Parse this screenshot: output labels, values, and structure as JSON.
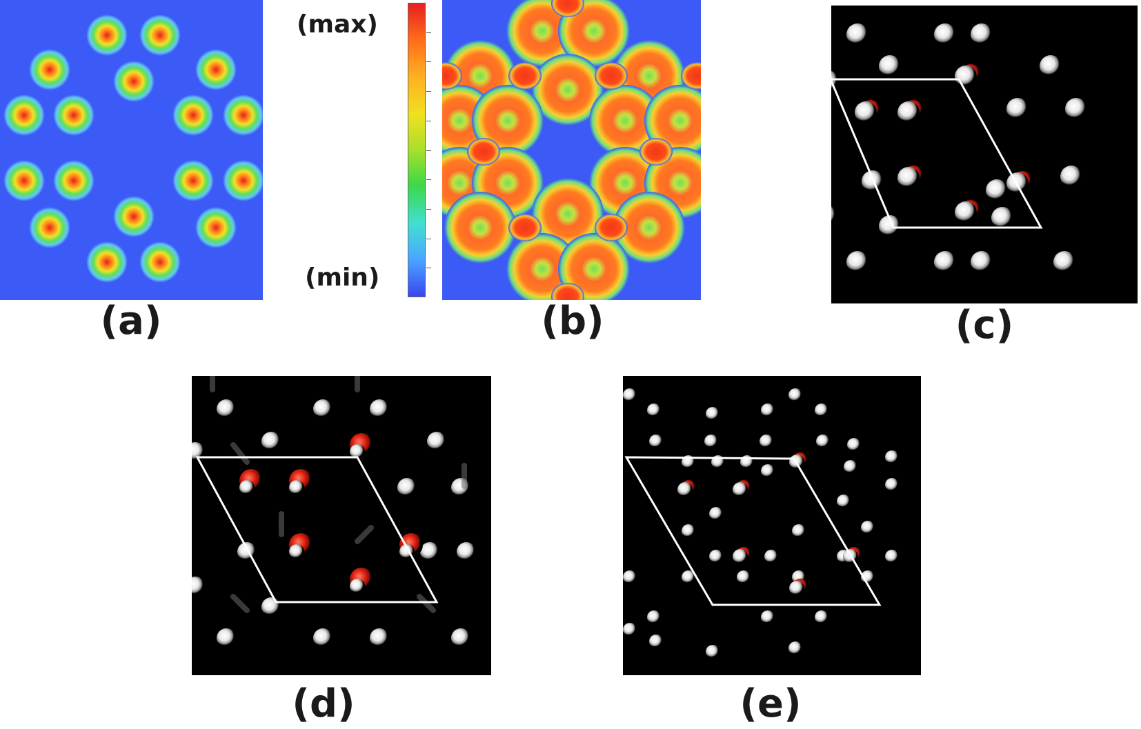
{
  "panels": {
    "a": {
      "label": "(a)"
    },
    "b": {
      "label": "(b)"
    },
    "c": {
      "label": "(c)"
    },
    "d": {
      "label": "(d)"
    },
    "e": {
      "label": "(e)"
    }
  },
  "colorbar": {
    "max_label": "(max)",
    "min_label": "(min)",
    "colors": [
      "#e52020",
      "#ff6a1a",
      "#ffb020",
      "#f0e020",
      "#a8e02a",
      "#3cd848",
      "#40e0d0",
      "#4aa8ff",
      "#3a46f0"
    ]
  },
  "colors": {
    "map_background": "#3c5af5",
    "atom_white": "#e8e8e8",
    "atom_red": "#e02010",
    "cell_outline": "#ffffff",
    "view_background": "#000000"
  }
}
